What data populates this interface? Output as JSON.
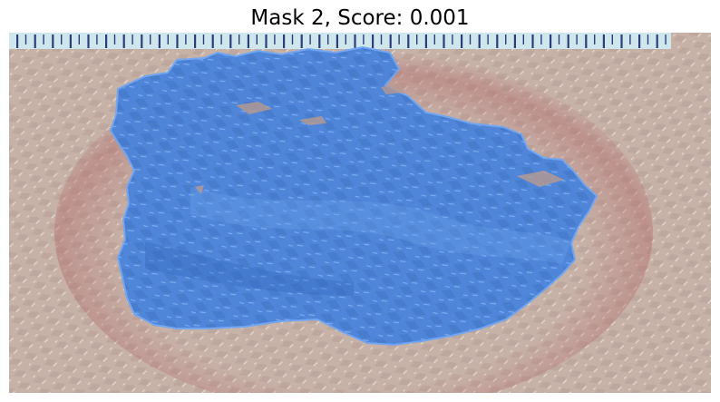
{
  "title": "Mask 2, Score: 0.001",
  "colors": {
    "skin": "#c6b0a6",
    "skin_dark": "#a8928a",
    "ruler": "#cfe6ec",
    "ruler_tick": "#2a3f7a",
    "mask": "#3f7fe0",
    "mask_edge": "#5a9aff"
  }
}
